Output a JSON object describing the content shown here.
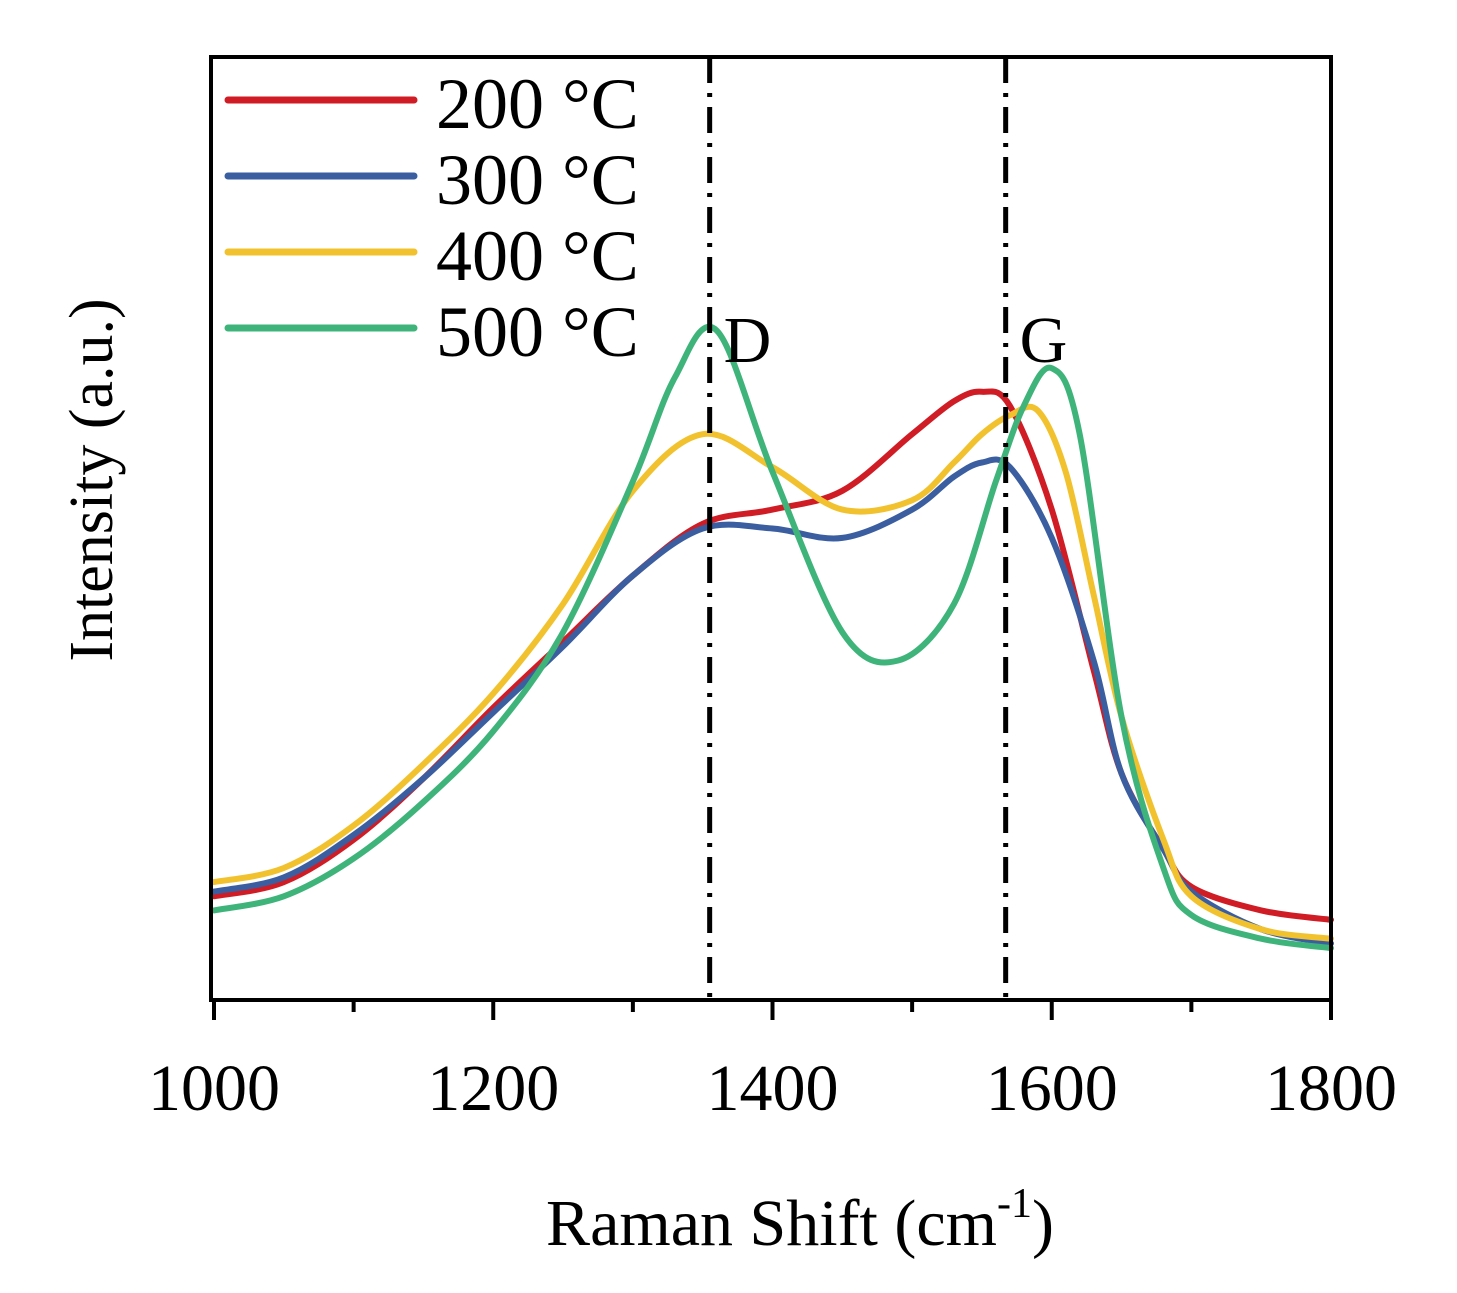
{
  "chart_data": {
    "type": "line",
    "title": "",
    "xlabel": "Raman Shift (cm",
    "xlabel_sup": "-1",
    "xlabel_close": ")",
    "ylabel": "Intensity (a.u.)",
    "xlim": [
      1000,
      1800
    ],
    "ylim": [
      0,
      1
    ],
    "x_ticks": [
      1000,
      1200,
      1400,
      1600,
      1800
    ],
    "x_tick_labels": [
      "1000",
      "1200",
      "1400",
      "1600",
      "1800"
    ],
    "x_minor_ticks": [
      1100,
      1300,
      1500,
      1700
    ],
    "y_ticks_shown": false,
    "grid": false,
    "legend_position": "top-left",
    "reference_lines": [
      {
        "label": "D",
        "x": 1355
      },
      {
        "label": "G",
        "x": 1567
      }
    ],
    "series": [
      {
        "name": "200 °C",
        "color": "#d01c24",
        "x": [
          1000,
          1050,
          1100,
          1150,
          1200,
          1250,
          1300,
          1350,
          1400,
          1450,
          1500,
          1530,
          1550,
          1570,
          1600,
          1630,
          1650,
          1680,
          1700,
          1750,
          1800
        ],
        "y": [
          0.11,
          0.125,
          0.17,
          0.235,
          0.31,
          0.38,
          0.45,
          0.505,
          0.52,
          0.54,
          0.6,
          0.635,
          0.645,
          0.63,
          0.52,
          0.35,
          0.24,
          0.16,
          0.12,
          0.095,
          0.085
        ]
      },
      {
        "name": "300 °C",
        "color": "#3a5ea0",
        "x": [
          1000,
          1050,
          1100,
          1150,
          1200,
          1250,
          1300,
          1350,
          1400,
          1450,
          1500,
          1530,
          1550,
          1570,
          1600,
          1630,
          1650,
          1680,
          1700,
          1750,
          1800
        ],
        "y": [
          0.115,
          0.13,
          0.175,
          0.235,
          0.305,
          0.375,
          0.45,
          0.5,
          0.5,
          0.49,
          0.52,
          0.555,
          0.57,
          0.565,
          0.49,
          0.36,
          0.24,
          0.16,
          0.115,
          0.075,
          0.06
        ]
      },
      {
        "name": "400 °C",
        "color": "#f2c12e",
        "x": [
          1000,
          1050,
          1100,
          1150,
          1200,
          1250,
          1300,
          1350,
          1400,
          1450,
          1500,
          1530,
          1550,
          1570,
          1590,
          1610,
          1630,
          1650,
          1680,
          1700,
          1750,
          1800
        ],
        "y": [
          0.125,
          0.14,
          0.185,
          0.25,
          0.325,
          0.42,
          0.54,
          0.6,
          0.565,
          0.52,
          0.53,
          0.57,
          0.6,
          0.62,
          0.625,
          0.56,
          0.43,
          0.3,
          0.17,
          0.11,
          0.075,
          0.065
        ]
      },
      {
        "name": "500 °C",
        "color": "#3fb47a",
        "x": [
          1000,
          1050,
          1100,
          1150,
          1200,
          1250,
          1300,
          1330,
          1360,
          1400,
          1450,
          1490,
          1530,
          1560,
          1580,
          1600,
          1620,
          1650,
          1680,
          1700,
          1750,
          1800
        ],
        "y": [
          0.095,
          0.11,
          0.15,
          0.21,
          0.285,
          0.39,
          0.55,
          0.66,
          0.71,
          0.56,
          0.39,
          0.36,
          0.42,
          0.55,
          0.63,
          0.67,
          0.6,
          0.3,
          0.14,
          0.09,
          0.065,
          0.055
        ]
      }
    ]
  }
}
